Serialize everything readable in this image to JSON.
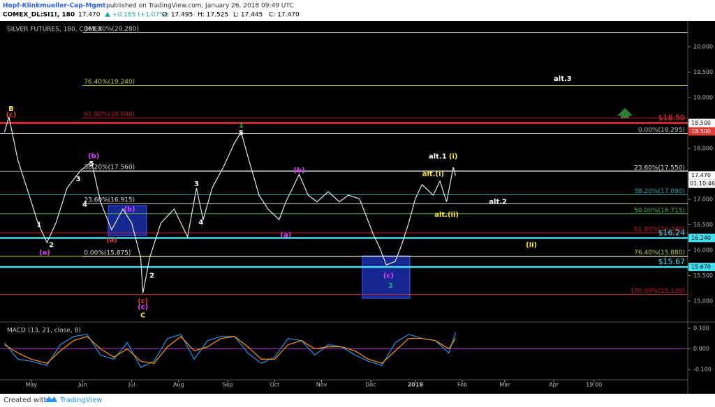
{
  "header": {
    "author": "Hopf-Klinkmueller-Cap-Mgmt",
    "published": "published on TradingView.com, January 26, 2018 09:49 UTC",
    "symbol": "COMEX_DL:SI1!, 180",
    "last": "17.470",
    "change": "+0.185 (+1.07%)",
    "open": "O: 17.495",
    "high": "H: 17.525",
    "low": "L: 17.445",
    "close": "C: 17.470"
  },
  "chart_data": [
    {
      "type": "line",
      "title": "SILVER FUTURES, 180, COMEX",
      "x": [
        2,
        4,
        8,
        14,
        17,
        21,
        25,
        30,
        36,
        41,
        45,
        50,
        55,
        59,
        63,
        64,
        67,
        72,
        78,
        84,
        88,
        91,
        95,
        100,
        105,
        108,
        111,
        116,
        120,
        125,
        128,
        134,
        138,
        142,
        147,
        152,
        156,
        161,
        164,
        167,
        170,
        173,
        177,
        180,
        183,
        186,
        189,
        194,
        197,
        200,
        203,
        204
      ],
      "series": [
        {
          "color": "#e8e8e8",
          "values": [
            18.32,
            18.62,
            17.77,
            16.95,
            16.53,
            16.15,
            16.53,
            17.22,
            17.56,
            17.74,
            16.95,
            16.4,
            16.81,
            16.53,
            15.85,
            15.16,
            15.85,
            16.53,
            16.81,
            16.26,
            17.22,
            16.6,
            17.22,
            17.63,
            18.11,
            18.32,
            17.84,
            17.08,
            16.81,
            16.6,
            16.95,
            17.49,
            17.08,
            16.95,
            17.15,
            16.95,
            17.08,
            17.01,
            16.67,
            16.33,
            16.05,
            15.71,
            15.78,
            16.12,
            16.53,
            17.01,
            17.29,
            17.08,
            17.36,
            16.95,
            17.63,
            17.47
          ]
        }
      ],
      "xlim": [
        0,
        308
      ],
      "xticks": [
        {
          "value": 14,
          "label": "May"
        },
        {
          "value": 37,
          "label": "Jun"
        },
        {
          "value": 59,
          "label": "Jul"
        },
        {
          "value": 80,
          "label": "Aug"
        },
        {
          "value": 102,
          "label": "Sep"
        },
        {
          "value": 123,
          "label": "Oct"
        },
        {
          "value": 144,
          "label": "Nov"
        },
        {
          "value": 166,
          "label": "Dec"
        },
        {
          "value": 186,
          "label": "2018"
        },
        {
          "value": 207,
          "label": "Feb"
        },
        {
          "value": 226,
          "label": "Mar"
        },
        {
          "value": 248,
          "label": "Apr"
        },
        {
          "value": 266,
          "label": "19:00"
        }
      ],
      "ylim": [
        14.616,
        20.507
      ],
      "yticks": [
        {
          "value": 20,
          "label": "20.000"
        },
        {
          "value": 19.5,
          "label": "19.500"
        },
        {
          "value": 19,
          "label": "19.000"
        },
        {
          "value": 18.5,
          "label": "18.500"
        },
        {
          "value": 18,
          "label": "18.000"
        },
        {
          "value": 17.5,
          "label": "17.500"
        },
        {
          "value": 17,
          "label": "17.000"
        },
        {
          "value": 16.5,
          "label": "16.500"
        },
        {
          "value": 16,
          "label": "16.000"
        },
        {
          "value": 15.5,
          "label": "15.500"
        },
        {
          "value": 15,
          "label": "15.000"
        }
      ],
      "levels": [
        {
          "value": 20.28,
          "label": "161.80%(20.280)",
          "color": "#cccccc",
          "from": 37,
          "align": "left"
        },
        {
          "value": 19.24,
          "label": "76.40%(19.240)",
          "color": "#c8c832",
          "from": 37,
          "align": "left"
        },
        {
          "value": 18.6,
          "label": "61.80%(18.600)",
          "color": "#c0202a",
          "from": 37,
          "align": "left"
        },
        {
          "value": 18.5,
          "label": "$18.50",
          "color": "#ff3030",
          "from": 0,
          "align": "right",
          "thick": true
        },
        {
          "value": 18.295,
          "label": "0.00%(18.295)",
          "color": "#bbbbbb",
          "from": 0,
          "align": "right"
        },
        {
          "value": 17.56,
          "label": "38.20%(17.560)",
          "color": "#dddddd",
          "from": 37,
          "align": "left"
        },
        {
          "value": 17.55,
          "label": "23.60%(17.550)",
          "color": "#dddddd",
          "from": 0,
          "align": "right"
        },
        {
          "value": 17.09,
          "label": "38.20%(17.090)",
          "color": "#2aa6a6",
          "from": 0,
          "align": "right"
        },
        {
          "value": 16.915,
          "label": "23.60%(16.915)",
          "color": "#dddddd",
          "from": 37,
          "align": "left"
        },
        {
          "value": 16.715,
          "label": "50.00%(16.715)",
          "color": "#4caf50",
          "from": 0,
          "align": "right"
        },
        {
          "value": 16.34,
          "label": "61.80%(16.340)",
          "color": "#c0202a",
          "from": 0,
          "align": "right"
        },
        {
          "value": 16.24,
          "label": "$16.24",
          "color": "#40e0f0",
          "from": 0,
          "align": "right",
          "thick": true
        },
        {
          "value": 15.88,
          "label": "76.40%(15.880)",
          "color": "#c8c832",
          "from": 0,
          "align": "right"
        },
        {
          "value": 15.875,
          "label": "0.00%(15.875)",
          "color": "#dddddd",
          "from": 37,
          "align": "left"
        },
        {
          "value": 15.67,
          "label": "$15.67",
          "color": "#40e0f0",
          "from": 0,
          "align": "right",
          "thick": true
        },
        {
          "value": 15.13,
          "label": "100.00%(15.130)",
          "color": "#c0202a",
          "from": 0,
          "align": "right"
        }
      ],
      "annotations": [
        {
          "text": "B",
          "x": 5,
          "y": 18.78,
          "color": "#ffeb3b"
        },
        {
          "text": "(c)",
          "x": 5,
          "y": 18.66,
          "color": "#e53935"
        },
        {
          "text": "(a)",
          "x": 20,
          "y": 15.95,
          "color": "#e040fb"
        },
        {
          "text": "2",
          "x": 23,
          "y": 16.1,
          "color": "#ffffff"
        },
        {
          "text": "1",
          "x": 17.5,
          "y": 16.5,
          "color": "#ffffff"
        },
        {
          "text": "3",
          "x": 35,
          "y": 17.4,
          "color": "#ffffff"
        },
        {
          "text": "(b)",
          "x": 42,
          "y": 17.85,
          "color": "#e040fb"
        },
        {
          "text": "5",
          "x": 41,
          "y": 17.7,
          "color": "#ffffff"
        },
        {
          "text": "4",
          "x": 38,
          "y": 16.9,
          "color": "#ffffff"
        },
        {
          "text": "(a)",
          "x": 50,
          "y": 16.2,
          "color": "#e53935"
        },
        {
          "text": "(b)",
          "x": 58,
          "y": 16.8,
          "color": "#e040fb"
        },
        {
          "text": "2",
          "x": 68,
          "y": 15.5,
          "color": "#ffffff"
        },
        {
          "text": "(c)",
          "x": 64,
          "y": 15.0,
          "color": "#e53935"
        },
        {
          "text": "(c)",
          "x": 64,
          "y": 14.88,
          "color": "#e040fb"
        },
        {
          "text": "C",
          "x": 64,
          "y": 14.72,
          "color": "#ffeb3b"
        },
        {
          "text": "3",
          "x": 88,
          "y": 17.3,
          "color": "#ffffff"
        },
        {
          "text": "4",
          "x": 90,
          "y": 16.55,
          "color": "#ffffff"
        },
        {
          "text": "1",
          "x": 108,
          "y": 18.45,
          "color": "#4caf50"
        },
        {
          "text": "5",
          "x": 108,
          "y": 18.3,
          "color": "#ffffff"
        },
        {
          "text": "(b)",
          "x": 134,
          "y": 17.57,
          "color": "#e040fb"
        },
        {
          "text": "(a)",
          "x": 128,
          "y": 16.3,
          "color": "#e040fb"
        },
        {
          "text": "(c)",
          "x": 174,
          "y": 15.5,
          "color": "#e040fb"
        },
        {
          "text": "2",
          "x": 175,
          "y": 15.3,
          "color": "#26a69a"
        },
        {
          "text": "alt.1",
          "x": 196,
          "y": 17.84,
          "color": "#ffffff"
        },
        {
          "text": "(i)",
          "x": 203,
          "y": 17.84,
          "color": "#ffeb3b"
        },
        {
          "text": "alt.(i)",
          "x": 194,
          "y": 17.5,
          "color": "#ffeb3b"
        },
        {
          "text": "alt.(ii)",
          "x": 200,
          "y": 16.7,
          "color": "#ffeb3b"
        },
        {
          "text": "alt.2",
          "x": 223,
          "y": 16.95,
          "color": "#ffffff"
        },
        {
          "text": "(ii)",
          "x": 238,
          "y": 16.1,
          "color": "#ffeb3b"
        },
        {
          "text": "alt.3",
          "x": 252,
          "y": 19.37,
          "color": "#ffffff"
        }
      ],
      "badges": [
        {
          "value": 18.5,
          "label": "18.500",
          "color": "#ffffff",
          "text_color": "#000000"
        },
        {
          "value": 18.5,
          "label": "18.500",
          "color": "#e53935",
          "text_color": "#ffffff",
          "offset": 1
        },
        {
          "value": 17.47,
          "label": "17.470",
          "color": "#ffffff",
          "text_color": "#000000"
        },
        {
          "value": 16.24,
          "label": "16.240",
          "color": "#40e0f0",
          "text_color": "#000000"
        },
        {
          "value": 15.67,
          "label": "15.670",
          "color": "#40e0f0",
          "text_color": "#000000"
        }
      ],
      "countdown": "01:10:46"
    },
    {
      "type": "line",
      "title": "MACD (13, 21, close, 8)",
      "x": [
        2,
        8,
        14,
        21,
        27,
        33,
        39,
        45,
        51,
        57,
        63,
        69,
        75,
        81,
        87,
        93,
        99,
        105,
        111,
        117,
        123,
        129,
        135,
        141,
        147,
        153,
        159,
        165,
        171,
        177,
        183,
        189,
        195,
        201,
        204
      ],
      "series": [
        {
          "color": "#2196f3",
          "values": [
            0.03,
            -0.05,
            -0.06,
            -0.08,
            0.02,
            0.06,
            0.07,
            -0.03,
            -0.05,
            0.03,
            -0.09,
            -0.06,
            0.05,
            0.07,
            -0.05,
            0.04,
            0.06,
            0.06,
            -0.02,
            -0.07,
            -0.04,
            0.05,
            0.04,
            -0.03,
            0.02,
            0.01,
            -0.03,
            -0.06,
            -0.08,
            0.03,
            0.07,
            0.05,
            0.04,
            -0.02,
            0.08
          ]
        },
        {
          "color": "#ff9800",
          "values": [
            0.02,
            -0.02,
            -0.05,
            -0.07,
            -0.01,
            0.04,
            0.06,
            0.0,
            -0.04,
            0.0,
            -0.06,
            -0.07,
            0.01,
            0.06,
            -0.01,
            0.01,
            0.05,
            0.06,
            0.01,
            -0.05,
            -0.05,
            0.02,
            0.04,
            0.0,
            0.01,
            0.01,
            -0.01,
            -0.05,
            -0.07,
            -0.01,
            0.05,
            0.05,
            0.04,
            0.0,
            0.05
          ]
        }
      ],
      "xlim": [
        0,
        308
      ],
      "ylim": [
        -0.15,
        0.12
      ],
      "yticks": [
        {
          "value": 0.1,
          "label": "0.100"
        },
        {
          "value": 0,
          "label": "0.000"
        },
        {
          "value": -0.1,
          "label": "-0.100"
        }
      ],
      "zero_line": "#9c27b0"
    }
  ],
  "footer": {
    "created": "Created with",
    "brand": "TradingView"
  }
}
